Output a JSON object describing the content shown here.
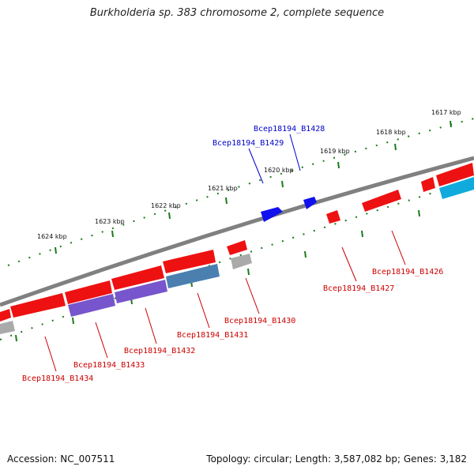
{
  "title": "Burkholderia sp. 383 chromosome 2, complete sequence",
  "footer": {
    "accession_label": "Accession:",
    "accession": "NC_007511",
    "topology_label": "Topology:",
    "topology": "circular",
    "length_label": "Length:",
    "length": "3,587,082 bp",
    "genes_label": "Genes:",
    "genes": "3,182"
  },
  "colors": {
    "backbone": "#808080",
    "tick_green": "#1a7a1a",
    "forward_label": "#0000cc",
    "reverse_label": "#cc0000",
    "gene_red": "#ee1111",
    "gene_blue": "#1111ee",
    "gene_purple": "#7755cc",
    "gene_steel": "#4a7fb0",
    "gene_cyan": "#11aadd",
    "gene_gray": "#aaaaaa"
  },
  "tick_labels": [
    "1617 kbp",
    "1618 kbp",
    "1619 kbp",
    "1620 kbp",
    "1621 kbp",
    "1622 kbp",
    "1623 kbp",
    "1624 kbp"
  ],
  "forward_labels": [
    "Bcep18194_B1428",
    "Bcep18194_B1429"
  ],
  "reverse_labels": [
    "Bcep18194_B1426",
    "Bcep18194_B1427",
    "Bcep18194_B1430",
    "Bcep18194_B1431",
    "Bcep18194_B1432",
    "Bcep18194_B1433",
    "Bcep18194_B1434"
  ]
}
